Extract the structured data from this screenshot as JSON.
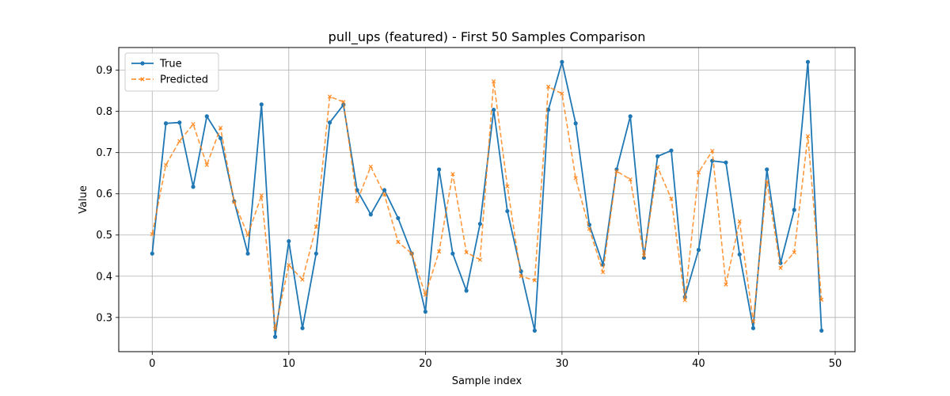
{
  "chart_data": {
    "type": "line",
    "title": "pull_ups (featured) - First 50 Samples Comparison",
    "xlabel": "Sample index",
    "ylabel": "Value",
    "xlim": [
      -2.45,
      51.45
    ],
    "ylim": [
      0.217,
      0.955
    ],
    "xticks": [
      0,
      10,
      20,
      30,
      40,
      50
    ],
    "yticks": [
      0.3,
      0.4,
      0.5,
      0.6,
      0.7,
      0.8,
      0.9
    ],
    "grid": true,
    "legend_position": "top-left",
    "x": [
      0,
      1,
      2,
      3,
      4,
      5,
      6,
      7,
      8,
      9,
      10,
      11,
      12,
      13,
      14,
      15,
      16,
      17,
      18,
      19,
      20,
      21,
      22,
      23,
      24,
      25,
      26,
      27,
      28,
      29,
      30,
      31,
      32,
      33,
      34,
      35,
      36,
      37,
      38,
      39,
      40,
      41,
      42,
      43,
      44,
      45,
      46,
      47,
      48,
      49
    ],
    "series": [
      {
        "name": "True",
        "color": "#1f77b4",
        "style": "solid",
        "marker": "circle",
        "values": [
          0.455,
          0.771,
          0.773,
          0.617,
          0.788,
          0.735,
          0.582,
          0.455,
          0.817,
          0.253,
          0.485,
          0.274,
          0.455,
          0.773,
          0.816,
          0.609,
          0.55,
          0.609,
          0.541,
          0.455,
          0.314,
          0.659,
          0.455,
          0.365,
          0.527,
          0.804,
          0.558,
          0.412,
          0.268,
          0.804,
          0.92,
          0.771,
          0.525,
          0.428,
          0.659,
          0.788,
          0.445,
          0.691,
          0.705,
          0.35,
          0.464,
          0.68,
          0.676,
          0.453,
          0.274,
          0.659,
          0.432,
          0.561,
          0.92,
          0.268
        ]
      },
      {
        "name": "Predicted",
        "color": "#ff7f0e",
        "style": "dashed",
        "marker": "x",
        "values": [
          0.502,
          0.67,
          0.728,
          0.769,
          0.67,
          0.76,
          0.58,
          0.5,
          0.596,
          0.272,
          0.427,
          0.392,
          0.52,
          0.836,
          0.823,
          0.582,
          0.666,
          0.598,
          0.483,
          0.455,
          0.355,
          0.46,
          0.648,
          0.458,
          0.44,
          0.873,
          0.618,
          0.4,
          0.39,
          0.86,
          0.843,
          0.638,
          0.515,
          0.41,
          0.655,
          0.635,
          0.45,
          0.665,
          0.588,
          0.342,
          0.652,
          0.704,
          0.38,
          0.533,
          0.29,
          0.629,
          0.42,
          0.458,
          0.74,
          0.343
        ]
      }
    ]
  }
}
